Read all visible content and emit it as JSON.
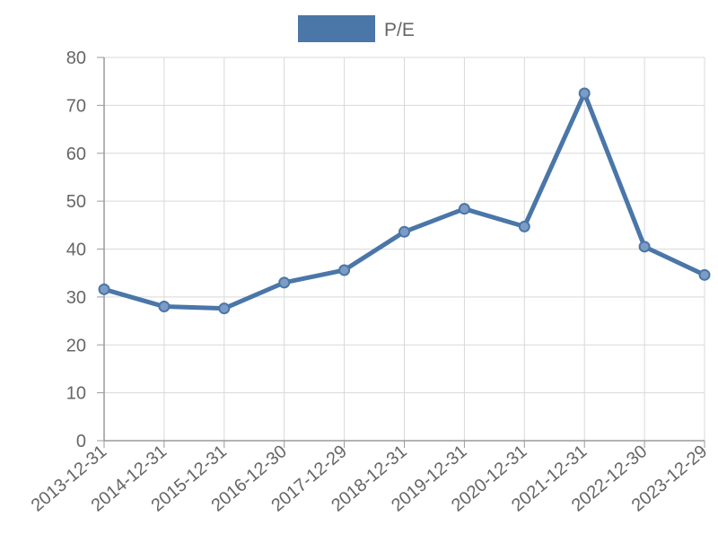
{
  "chart_data": {
    "type": "line",
    "title": "",
    "xlabel": "",
    "ylabel": "",
    "categories": [
      "2013-12-31",
      "2014-12-31",
      "2015-12-31",
      "2016-12-30",
      "2017-12-29",
      "2018-12-31",
      "2019-12-31",
      "2020-12-31",
      "2021-12-31",
      "2022-12-30",
      "2023-12-29"
    ],
    "series": [
      {
        "name": "P/E",
        "values": [
          31.6,
          28.0,
          27.6,
          33.0,
          35.6,
          43.6,
          48.4,
          44.7,
          72.5,
          40.5,
          34.6
        ]
      }
    ],
    "ylim": [
      0,
      80
    ],
    "yticks": [
      0,
      10,
      20,
      30,
      40,
      50,
      60,
      70,
      80
    ],
    "grid": true,
    "legend_position": "top",
    "colors": {
      "line": "#4a76a8",
      "marker_fill": "#7c9cc5",
      "grid": "#d9d9d9",
      "axis": "#9a9a9a",
      "text": "#666666"
    }
  }
}
